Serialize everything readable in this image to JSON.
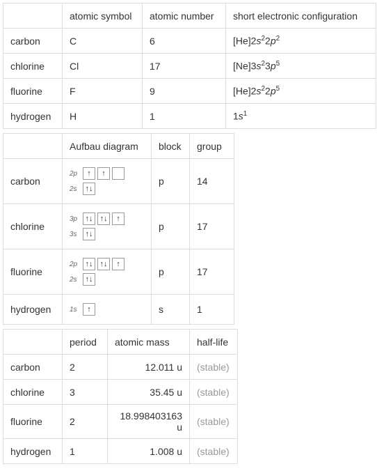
{
  "table1": {
    "headers": [
      "atomic symbol",
      "atomic number",
      "short electronic configuration"
    ],
    "rows": [
      {
        "name": "carbon",
        "symbol": "C",
        "number": "6",
        "config": {
          "prefix": "[He]",
          "parts": [
            {
              "shell": "2",
              "orbital": "s",
              "exp": "2"
            },
            {
              "shell": "2",
              "orbital": "p",
              "exp": "2"
            }
          ]
        }
      },
      {
        "name": "chlorine",
        "symbol": "Cl",
        "number": "17",
        "config": {
          "prefix": "[Ne]",
          "parts": [
            {
              "shell": "3",
              "orbital": "s",
              "exp": "2"
            },
            {
              "shell": "3",
              "orbital": "p",
              "exp": "5"
            }
          ]
        }
      },
      {
        "name": "fluorine",
        "symbol": "F",
        "number": "9",
        "config": {
          "prefix": "[He]",
          "parts": [
            {
              "shell": "2",
              "orbital": "s",
              "exp": "2"
            },
            {
              "shell": "2",
              "orbital": "p",
              "exp": "5"
            }
          ]
        }
      },
      {
        "name": "hydrogen",
        "symbol": "H",
        "number": "1",
        "config": {
          "prefix": "",
          "parts": [
            {
              "shell": "1",
              "orbital": "s",
              "exp": "1"
            }
          ]
        }
      }
    ]
  },
  "table2": {
    "headers": [
      "Aufbau diagram",
      "block",
      "group"
    ],
    "rows": [
      {
        "name": "carbon",
        "block": "p",
        "group": "14",
        "orbitals": [
          {
            "label": "2p",
            "boxes": [
              "↑",
              "↑",
              ""
            ]
          },
          {
            "label": "2s",
            "boxes": [
              "↑↓"
            ]
          }
        ]
      },
      {
        "name": "chlorine",
        "block": "p",
        "group": "17",
        "orbitals": [
          {
            "label": "3p",
            "boxes": [
              "↑↓",
              "↑↓",
              "↑"
            ]
          },
          {
            "label": "3s",
            "boxes": [
              "↑↓"
            ]
          }
        ]
      },
      {
        "name": "fluorine",
        "block": "p",
        "group": "17",
        "orbitals": [
          {
            "label": "2p",
            "boxes": [
              "↑↓",
              "↑↓",
              "↑"
            ]
          },
          {
            "label": "2s",
            "boxes": [
              "↑↓"
            ]
          }
        ]
      },
      {
        "name": "hydrogen",
        "block": "s",
        "group": "1",
        "orbitals": [
          {
            "label": "1s",
            "boxes": [
              "↑"
            ]
          }
        ]
      }
    ]
  },
  "table3": {
    "headers": [
      "period",
      "atomic mass",
      "half-life"
    ],
    "rows": [
      {
        "name": "carbon",
        "period": "2",
        "mass": "12.011 u",
        "halflife": "(stable)"
      },
      {
        "name": "chlorine",
        "period": "3",
        "mass": "35.45 u",
        "halflife": "(stable)"
      },
      {
        "name": "fluorine",
        "period": "2",
        "mass": "18.998403163 u",
        "halflife": "(stable)"
      },
      {
        "name": "hydrogen",
        "period": "1",
        "mass": "1.008 u",
        "halflife": "(stable)"
      }
    ]
  }
}
